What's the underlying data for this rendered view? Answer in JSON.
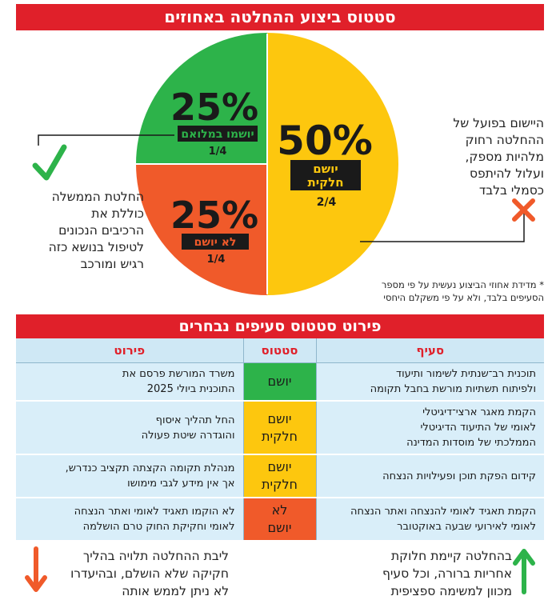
{
  "header": {
    "title": "סטטוס ביצוע ההחלטה באחוזים"
  },
  "chart_data": {
    "type": "pie",
    "title": "סטטוס ביצוע ההחלטה באחוזים",
    "slices": [
      {
        "percent_label": "50%",
        "value": 50,
        "label": "יושם חלקית",
        "fraction": "2/4",
        "color": "#fdc70e"
      },
      {
        "percent_label": "25%",
        "value": 25,
        "label": "לא יושם",
        "fraction": "1/4",
        "color": "#f05a2a"
      },
      {
        "percent_label": "25%",
        "value": 25,
        "label": "יושמו במלואם",
        "fraction": "1/4",
        "color": "#2db34a"
      }
    ],
    "yellow_label_lines": [
      "יושם",
      "חלקית"
    ]
  },
  "callouts": {
    "right_lines": [
      "היישום בפועל של",
      "ההחלטה רחוק",
      "מלהיות מספק,",
      "ועלול להיתפס",
      "כסמלי בלבד"
    ],
    "left_lines": [
      "החלטת הממשלה",
      "כוללת את",
      "הרכיבים הנכונים",
      "לטיפול בנושא כזה",
      "רגיש ומורכב"
    ],
    "footnote_lines": [
      "* מדידת אחוזי הביצוע נעשית על פי מספר",
      "הסעיפים בלבד, ולא על פי משקלם היחסי"
    ]
  },
  "section2": {
    "title": "פירוט סטטוס סעיפים נבחרים"
  },
  "table": {
    "headers": {
      "item": "סעיף",
      "status": "סטטוס",
      "details": "פירוט"
    },
    "rows": [
      {
        "item_lines": [
          "תוכנית רב־שנתית לשימור ותיעוד",
          "ולפיתוח תשתיות מורשת בחבל תקומה"
        ],
        "status_lines": [
          "יושם"
        ],
        "details_lines": [
          "משרד המורשת פרסם את",
          "התוכנית ביולי 2025"
        ]
      },
      {
        "item_lines": [
          "הקמת מאגר ארצי־דיגיטלי",
          "לאומי של התיעוד הדיגיטלי",
          "הממלכתי של מוסדות המדינה"
        ],
        "status_lines": [
          "יושם",
          "חלקית"
        ],
        "details_lines": [
          "החל תהליך איסוף",
          "והוגדרה שיטת פעולה"
        ]
      },
      {
        "item_lines": [
          "קידום הפקת תוכן ופעילויות הנצחה"
        ],
        "status_lines": [
          "יושם",
          "חלקית"
        ],
        "details_lines": [
          "מנהלת תקומה הקצתה תקציב כנדרש,",
          "אך אין מידע לגבי מימושו"
        ]
      },
      {
        "item_lines": [
          "הקמת תאגיד לאומי להנצחה ואתר הנצחה",
          "לאומי לאירועי שבעה באוקטובר"
        ],
        "status_lines": [
          "לא",
          "יושם"
        ],
        "details_lines": [
          "לא הוקמו תאגיד לאומי ואתר הנצחה",
          "לאומי וחקיקת החוק טרם הושלמה"
        ]
      }
    ]
  },
  "bottom": {
    "left_lines": [
      "ליבת ההחלטה תלויה בהליך",
      "חקיקה שלא הושלם, ובהיעדרו",
      "לא ניתן לממש אותה"
    ],
    "right_lines": [
      "בהחלטה קיימת חלוקת",
      "אחריות ברורה, וכל סעיף",
      "מכוון למשימה ספציפית"
    ]
  },
  "colors": {
    "red": "#e0202a",
    "green": "#2db34a",
    "yellow": "#fdc70e",
    "orange": "#f05a2a",
    "table_bg": "#d9eef9"
  }
}
